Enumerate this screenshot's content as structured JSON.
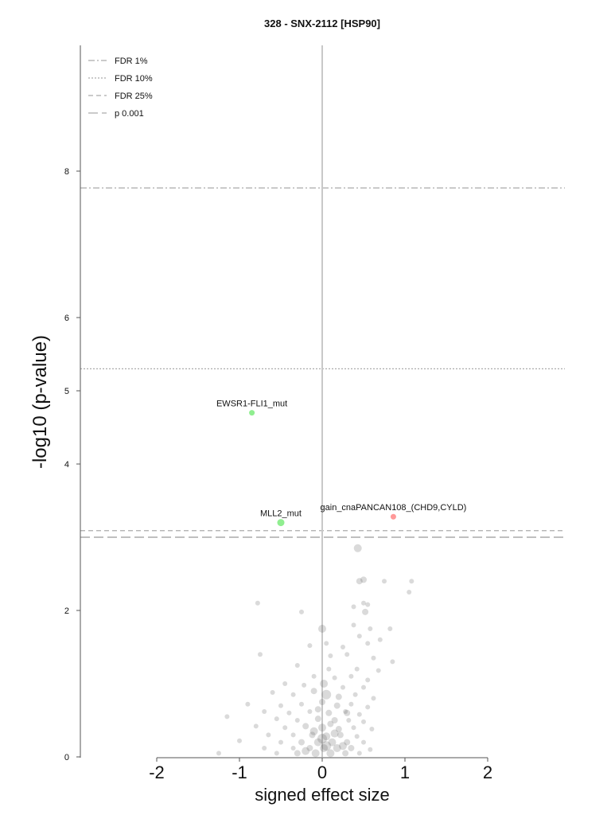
{
  "chart_data": {
    "type": "scatter",
    "title": "328 - SNX-2112 [HSP90]",
    "xlabel": "signed effect size",
    "ylabel": "-log10 (p-value)",
    "xlim": [
      -2.9,
      2.9
    ],
    "ylim": [
      0,
      9.7
    ],
    "xticks": [
      "-2",
      "-1",
      "0",
      "1",
      "2"
    ],
    "yticks": [
      "0",
      "2",
      "4",
      "5",
      "6",
      "8"
    ],
    "legend_position": "top-left",
    "thresholds": [
      {
        "name": "FDR 1%",
        "y": 7.77,
        "style": "dashdot",
        "color": "#aaaaaa"
      },
      {
        "name": "FDR 10%",
        "y": 5.3,
        "style": "dotted",
        "color": "#aaaaaa"
      },
      {
        "name": "FDR 25%",
        "y": 3.09,
        "style": "dashed",
        "color": "#aaaaaa"
      },
      {
        "name": "p 0.001",
        "y": 3.0,
        "style": "longdash",
        "color": "#aaaaaa"
      }
    ],
    "highlighted": [
      {
        "label": "EWSR1-FLI1_mut",
        "x": -0.85,
        "y": 4.7,
        "color": "#90ee90",
        "r": 3.5
      },
      {
        "label": "MLL2_mut",
        "x": -0.5,
        "y": 3.2,
        "color": "#90ee90",
        "r": 4.5
      },
      {
        "label": "gain_cnaPANCAN108_(CHD9,CYLD)",
        "x": 0.86,
        "y": 3.28,
        "color": "#ff9999",
        "r": 3.5
      }
    ],
    "background_points": [
      [
        0.43,
        2.85,
        5
      ],
      [
        0.45,
        2.4,
        4
      ],
      [
        0.5,
        2.42,
        4
      ],
      [
        0.75,
        2.4,
        3
      ],
      [
        1.08,
        2.4,
        3
      ],
      [
        1.05,
        2.25,
        3
      ],
      [
        0.38,
        2.05,
        3
      ],
      [
        0.5,
        2.1,
        3
      ],
      [
        0.55,
        2.08,
        3
      ],
      [
        0.52,
        1.98,
        4
      ],
      [
        -0.78,
        2.1,
        3
      ],
      [
        -0.25,
        1.98,
        3
      ],
      [
        0.0,
        1.75,
        5
      ],
      [
        0.45,
        1.65,
        3
      ],
      [
        0.58,
        1.75,
        3
      ],
      [
        0.82,
        1.75,
        3
      ],
      [
        0.38,
        1.8,
        3
      ],
      [
        -0.15,
        1.52,
        3
      ],
      [
        0.05,
        1.55,
        3
      ],
      [
        0.25,
        1.5,
        3
      ],
      [
        0.55,
        1.55,
        3
      ],
      [
        0.7,
        1.6,
        3
      ],
      [
        0.1,
        1.38,
        3
      ],
      [
        0.3,
        1.4,
        3
      ],
      [
        -0.75,
        1.4,
        3
      ],
      [
        0.62,
        1.35,
        3
      ],
      [
        0.85,
        1.3,
        3
      ],
      [
        -0.3,
        1.25,
        3
      ],
      [
        0.08,
        1.2,
        3
      ],
      [
        0.42,
        1.2,
        3
      ],
      [
        0.68,
        1.18,
        3
      ],
      [
        -0.1,
        1.1,
        3
      ],
      [
        0.15,
        1.08,
        3
      ],
      [
        0.35,
        1.1,
        3
      ],
      [
        0.55,
        1.05,
        3
      ],
      [
        -0.45,
        1.0,
        3
      ],
      [
        -0.22,
        0.98,
        3
      ],
      [
        0.02,
        1.0,
        5
      ],
      [
        0.25,
        0.95,
        3
      ],
      [
        0.5,
        0.95,
        3
      ],
      [
        -0.6,
        0.88,
        3
      ],
      [
        -0.35,
        0.85,
        3
      ],
      [
        -0.1,
        0.9,
        4
      ],
      [
        0.05,
        0.85,
        6
      ],
      [
        0.2,
        0.82,
        4
      ],
      [
        0.4,
        0.85,
        3
      ],
      [
        0.62,
        0.8,
        3
      ],
      [
        -0.9,
        0.72,
        3
      ],
      [
        -0.5,
        0.7,
        3
      ],
      [
        -0.25,
        0.72,
        3
      ],
      [
        0.0,
        0.75,
        4
      ],
      [
        0.18,
        0.7,
        4
      ],
      [
        0.35,
        0.72,
        3
      ],
      [
        0.55,
        0.68,
        3
      ],
      [
        -0.7,
        0.62,
        3
      ],
      [
        -0.4,
        0.6,
        3
      ],
      [
        -0.15,
        0.62,
        3
      ],
      [
        0.08,
        0.6,
        4
      ],
      [
        0.28,
        0.62,
        3
      ],
      [
        0.45,
        0.58,
        3
      ],
      [
        -1.15,
        0.55,
        3
      ],
      [
        -0.55,
        0.52,
        3
      ],
      [
        -0.3,
        0.5,
        3
      ],
      [
        -0.05,
        0.52,
        4
      ],
      [
        0.15,
        0.5,
        4
      ],
      [
        0.32,
        0.5,
        3
      ],
      [
        0.5,
        0.48,
        3
      ],
      [
        -0.8,
        0.42,
        3
      ],
      [
        -0.45,
        0.4,
        3
      ],
      [
        -0.2,
        0.42,
        4
      ],
      [
        0.0,
        0.4,
        5
      ],
      [
        0.2,
        0.38,
        4
      ],
      [
        0.38,
        0.4,
        3
      ],
      [
        0.6,
        0.38,
        3
      ],
      [
        -0.65,
        0.3,
        3
      ],
      [
        -0.35,
        0.3,
        3
      ],
      [
        -0.12,
        0.3,
        4
      ],
      [
        0.05,
        0.28,
        5
      ],
      [
        0.22,
        0.3,
        4
      ],
      [
        0.42,
        0.28,
        3
      ],
      [
        -1.0,
        0.22,
        3
      ],
      [
        -0.5,
        0.2,
        3
      ],
      [
        -0.25,
        0.2,
        4
      ],
      [
        -0.05,
        0.2,
        5
      ],
      [
        0.12,
        0.2,
        5
      ],
      [
        0.3,
        0.2,
        4
      ],
      [
        0.5,
        0.2,
        3
      ],
      [
        -0.7,
        0.12,
        3
      ],
      [
        -0.35,
        0.12,
        3
      ],
      [
        -0.15,
        0.12,
        4
      ],
      [
        0.02,
        0.12,
        5
      ],
      [
        0.18,
        0.12,
        5
      ],
      [
        0.35,
        0.12,
        4
      ],
      [
        0.58,
        0.1,
        3
      ],
      [
        -1.25,
        0.05,
        3
      ],
      [
        -0.55,
        0.05,
        3
      ],
      [
        -0.3,
        0.05,
        4
      ],
      [
        -0.08,
        0.05,
        5
      ],
      [
        0.1,
        0.05,
        5
      ],
      [
        0.28,
        0.05,
        4
      ],
      [
        0.45,
        0.05,
        3
      ],
      [
        -0.2,
        0.08,
        5
      ],
      [
        0.05,
        0.15,
        6
      ],
      [
        0.0,
        0.25,
        6
      ],
      [
        0.15,
        0.32,
        5
      ],
      [
        -0.1,
        0.35,
        5
      ],
      [
        0.25,
        0.15,
        5
      ],
      [
        0.1,
        0.45,
        4
      ],
      [
        -0.05,
        0.65,
        4
      ],
      [
        0.3,
        0.6,
        4
      ]
    ]
  }
}
